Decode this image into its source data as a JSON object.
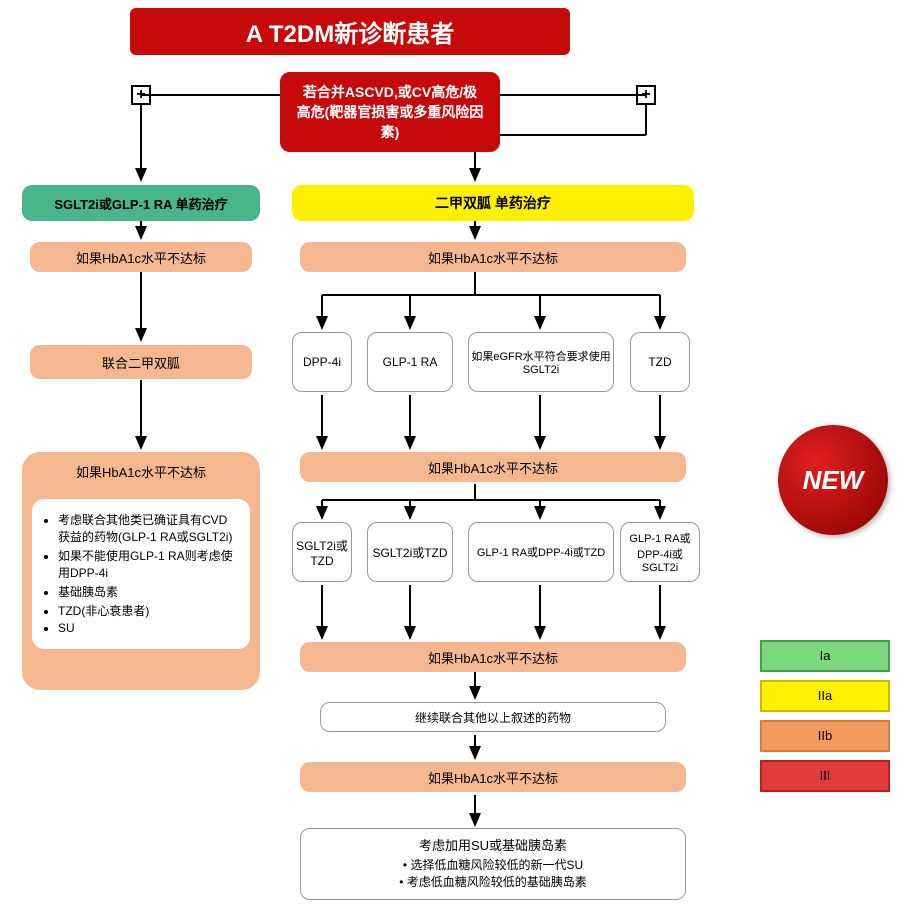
{
  "title": "A  T2DM新诊断患者",
  "top_condition": "若合并ASCVD,或CV高危/极高危(靶器官损害或多重风险因素)",
  "left": {
    "mono": "SGLT2i或GLP-1 RA 单药治疗",
    "hba1c_1": "如果HbA1c水平不达标",
    "combine": "联合二甲双胍",
    "hba1c_2": "如果HbA1c水平不达标",
    "bullets": [
      "考虑联合其他类已确证具有CVD获益的药物(GLP-1 RA或SGLT2i)",
      "如果不能使用GLP-1 RA则考虑使用DPP-4i",
      "基础胰岛素",
      "TZD(非心衰患者)",
      "SU"
    ]
  },
  "right": {
    "mono": "二甲双胍 单药治疗",
    "hba1c_1": "如果HbA1c水平不达标",
    "row1": {
      "a": "DPP-4i",
      "b": "GLP-1 RA",
      "c": "如果eGFR水平符合要求使用SGLT2i",
      "d": "TZD"
    },
    "hba1c_2": "如果HbA1c水平不达标",
    "row2": {
      "a": "SGLT2i或TZD",
      "b": "SGLT2i或TZD",
      "c": "GLP-1 RA或DPP-4i或TZD",
      "d": "GLP-1 RA或DPP-4i或SGLT2i"
    },
    "hba1c_3": "如果HbA1c水平不达标",
    "continue": "继续联合其他以上叙述的药物",
    "hba1c_4": "如果HbA1c水平不达标",
    "final_head": "考虑加用SU或基础胰岛素",
    "final_b1": "选择低血糖风险较低的新一代SU",
    "final_b2": "考虑低血糖风险较低的基础胰岛素"
  },
  "badge": "NEW",
  "legend": [
    {
      "label": "Ia",
      "bg": "#7dd87d",
      "border": "#4a9e4a"
    },
    {
      "label": "IIa",
      "bg": "#ffef00",
      "border": "#c9bc00"
    },
    {
      "label": "IIb",
      "bg": "#f39b5f",
      "border": "#d87a3a"
    },
    {
      "label": "III",
      "bg": "#e23b3b",
      "border": "#b81f1f"
    }
  ],
  "colors": {
    "red": "#c60a0a",
    "green": "#48b58d",
    "yellow": "#ffef00",
    "peach": "#f5b78f",
    "arrow": "#000000"
  }
}
